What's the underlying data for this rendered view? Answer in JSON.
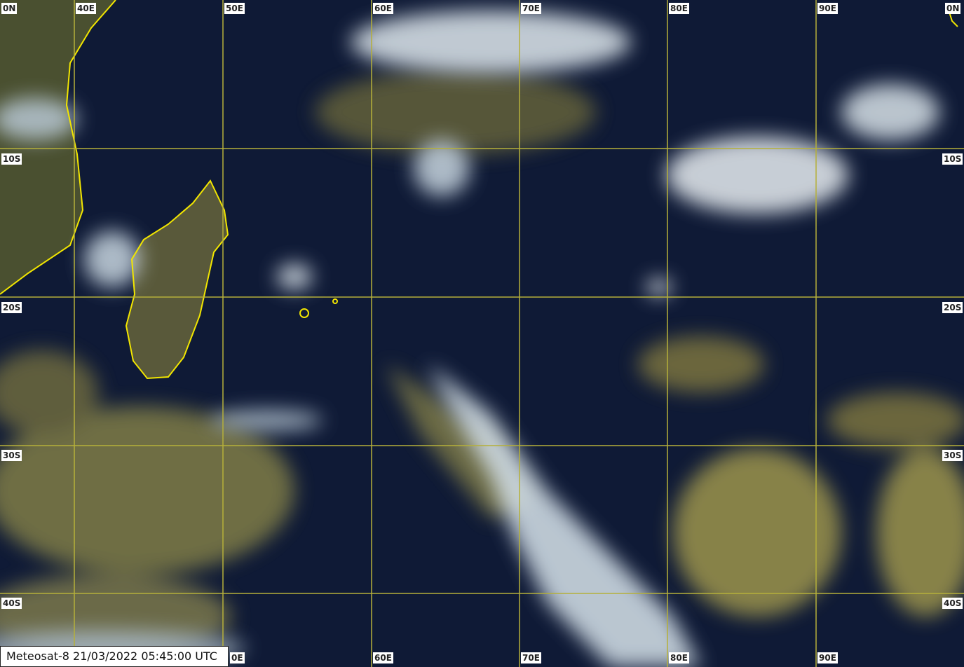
{
  "caption": "Meteosat-8 21/03/2022 05:45:00 UTC",
  "colors": {
    "ocean": "#0f1a36",
    "grid": "#b5b03a",
    "coast": "#f2e600",
    "cloud_high": "#e4eef4",
    "cloud_low": "#b8ad58",
    "label_bg": "#ffffff"
  },
  "grid": {
    "top_labels": [
      "0N",
      "40E",
      "50E",
      "60E",
      "70E",
      "80E",
      "90E",
      "0N"
    ],
    "bottom_labels": [
      "0E",
      "60E",
      "70E",
      "80E",
      "90E"
    ],
    "left_labels": [
      "10S",
      "20S",
      "30S",
      "40S"
    ],
    "right_labels": [
      "10S",
      "20S",
      "30S",
      "40S"
    ]
  }
}
